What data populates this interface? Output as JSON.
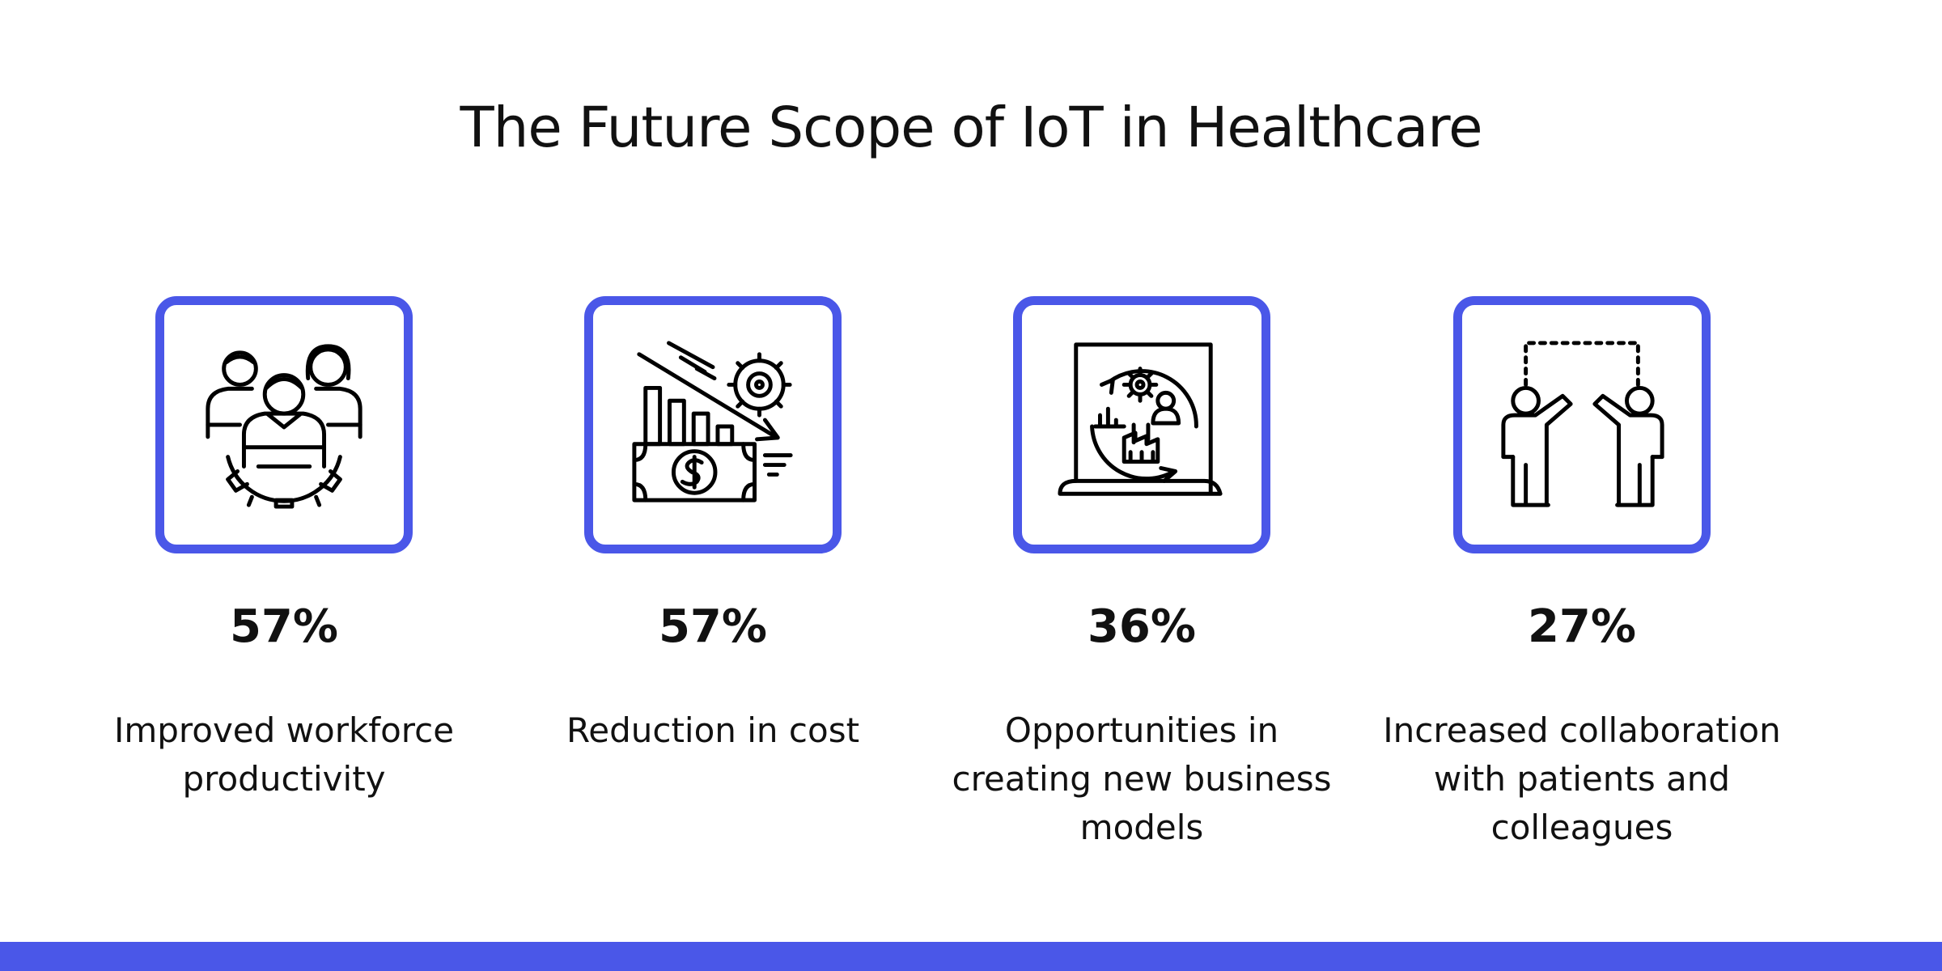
{
  "title": "The Future Scope of IoT in Healthcare",
  "accent_color": "#4a57e8",
  "cards": [
    {
      "icon": "team-gear-icon",
      "stat": "57%",
      "desc_lines": [
        "Improved workforce",
        "productivity"
      ]
    },
    {
      "icon": "cost-reduction-icon",
      "stat": "57%",
      "desc_lines": [
        "Reduction in cost"
      ]
    },
    {
      "icon": "business-model-icon",
      "stat": "36%",
      "desc_lines": [
        "Opportunities in",
        "creating new business",
        "models"
      ]
    },
    {
      "icon": "collaboration-high-five-icon",
      "stat": "27%",
      "desc_lines": [
        "Increased collaboration",
        "with patients and",
        "colleagues"
      ]
    }
  ]
}
